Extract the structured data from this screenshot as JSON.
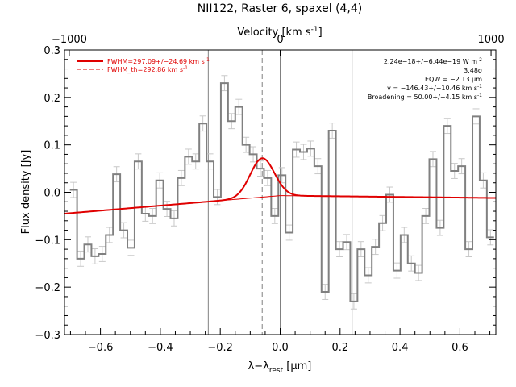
{
  "chart_data": {
    "type": "line",
    "title": "NII122, Raster 6, spaxel (4,4)",
    "xlabel": "λ−λ",
    "xlabel_sub": "rest",
    "xlabel_unit": " [μm]",
    "ylabel": "Flux density [Jy]",
    "top_axis_label": "Velocity [km s",
    "top_axis_label_sup": "-1",
    "top_axis_label_end": "]",
    "xlim": [
      -0.72,
      0.72
    ],
    "ylim": [
      -0.3,
      0.3
    ],
    "x_ticks": [
      -0.6,
      -0.4,
      -0.2,
      0.0,
      0.2,
      0.4,
      0.6
    ],
    "x_tick_labels": [
      "−0.6",
      "−0.4",
      "−0.2",
      "0.0",
      "0.2",
      "0.4",
      "0.6"
    ],
    "y_ticks": [
      -0.3,
      -0.2,
      -0.1,
      0.0,
      0.1,
      0.2,
      0.3
    ],
    "y_tick_labels": [
      "−0.3",
      "−0.2",
      "−0.1",
      "0.0",
      "0.1",
      "0.2",
      "0.3"
    ],
    "top_ticks_wavelength": [
      -0.704,
      0.0,
      0.704
    ],
    "top_tick_labels": [
      "−1000",
      "0",
      "1000"
    ],
    "vertical_lines": [
      -0.24,
      0.0,
      0.24
    ],
    "dashed_line_x": -0.06,
    "legend": [
      {
        "label": "FWHM=297.09+/−24.69 km s",
        "sup": "-1",
        "style": "solid",
        "color": "#e00000"
      },
      {
        "label": "FWHM_th=292.86 km s",
        "sup": "-1",
        "style": "dashed",
        "color": "#e00000"
      }
    ],
    "annotations": [
      {
        "text": "2.24e−18+/−6.44e−19 W m",
        "sup": "-2"
      },
      {
        "text": "3.48σ",
        "sup": ""
      },
      {
        "text": "EQW = −2.13 μm",
        "sup": ""
      },
      {
        "text": "v = −146.43+/−10.46 km s",
        "sup": "-1"
      },
      {
        "text": "Broadening = 50.00+/−4.15 km s",
        "sup": "-1"
      }
    ],
    "spectrum": {
      "name": "data",
      "color": "#808080",
      "x": [
        -0.69,
        -0.666,
        -0.642,
        -0.618,
        -0.594,
        -0.57,
        -0.546,
        -0.522,
        -0.498,
        -0.474,
        -0.45,
        -0.426,
        -0.402,
        -0.378,
        -0.354,
        -0.33,
        -0.306,
        -0.282,
        -0.258,
        -0.234,
        -0.21,
        -0.186,
        -0.162,
        -0.138,
        -0.114,
        -0.09,
        -0.066,
        -0.042,
        -0.018,
        0.006,
        0.03,
        0.054,
        0.078,
        0.102,
        0.126,
        0.15,
        0.174,
        0.198,
        0.222,
        0.246,
        0.27,
        0.294,
        0.318,
        0.342,
        0.366,
        0.39,
        0.414,
        0.438,
        0.462,
        0.486,
        0.51,
        0.534,
        0.558,
        0.582,
        0.606,
        0.63,
        0.654,
        0.678,
        0.702
      ],
      "y": [
        0.005,
        -0.14,
        -0.11,
        -0.135,
        -0.13,
        -0.09,
        0.038,
        -0.08,
        -0.117,
        0.065,
        -0.045,
        -0.05,
        0.025,
        -0.035,
        -0.055,
        0.03,
        0.075,
        0.065,
        0.145,
        0.065,
        -0.01,
        0.23,
        0.15,
        0.18,
        0.1,
        0.08,
        0.05,
        0.03,
        -0.05,
        0.036,
        -0.085,
        0.09,
        0.085,
        0.092,
        0.055,
        -0.21,
        0.13,
        -0.12,
        -0.105,
        -0.23,
        -0.12,
        -0.175,
        -0.115,
        -0.065,
        -0.005,
        -0.165,
        -0.09,
        -0.15,
        -0.17,
        -0.05,
        0.07,
        -0.075,
        0.14,
        0.045,
        0.055,
        -0.12,
        0.16,
        0.025,
        -0.095
      ]
    },
    "errors": [
      0.016,
      0.016,
      0.016,
      0.016,
      0.016,
      0.016,
      0.016,
      0.016,
      0.016,
      0.016,
      0.016,
      0.016,
      0.016,
      0.016,
      0.016,
      0.016,
      0.016,
      0.016,
      0.016,
      0.016,
      0.016,
      0.016,
      0.016,
      0.016,
      0.016,
      0.016,
      0.016,
      0.016,
      0.016,
      0.016,
      0.016,
      0.016,
      0.016,
      0.016,
      0.016,
      0.016,
      0.016,
      0.016,
      0.016,
      0.016,
      0.016,
      0.016,
      0.016,
      0.016,
      0.016,
      0.016,
      0.016,
      0.016,
      0.016,
      0.016,
      0.016,
      0.016,
      0.016,
      0.016,
      0.016,
      0.016,
      0.016,
      0.016,
      0.016
    ],
    "fit": {
      "color": "#e00000",
      "gaussian_center": -0.06,
      "gaussian_sigma": 0.04,
      "gaussian_peak": 0.082,
      "continuum_left": -0.045,
      "continuum_slope": 0.055,
      "continuum_mid": -0.007,
      "continuum_right": -0.012
    }
  }
}
